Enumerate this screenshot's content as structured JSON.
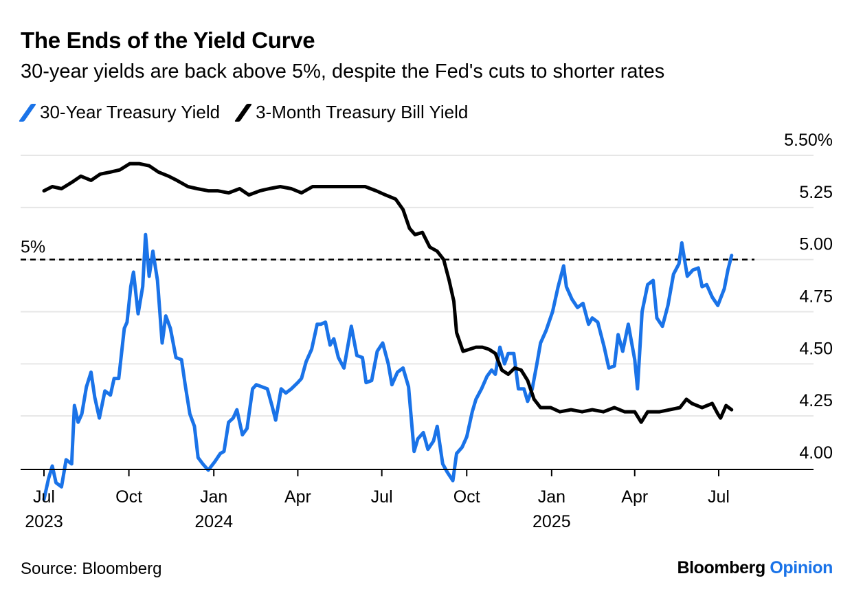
{
  "header": {
    "title": "The Ends of the Yield Curve",
    "subtitle": "30-year yields are back above 5%, despite the Fed's cuts to shorter rates"
  },
  "footer": {
    "source": "Source: Bloomberg",
    "brand_main": "Bloomberg",
    "brand_accent": "Opinion"
  },
  "colors": {
    "series_30y": "#1a73e8",
    "series_3m": "#000000",
    "grid": "#e6e6e6",
    "brand_accent": "#1a73e8"
  },
  "chart_data": {
    "type": "line",
    "title": "The Ends of the Yield Curve",
    "subtitle": "30-year yields are back above 5%, despite the Fed's cuts to shorter rates",
    "xlabel": "",
    "ylabel": "",
    "ylim": [
      3.92,
      5.55
    ],
    "y_ticks": [
      4.0,
      4.25,
      4.5,
      4.75,
      5.0,
      5.25,
      5.5
    ],
    "y_tick_labels": [
      "4.00",
      "4.25",
      "4.50",
      "4.75",
      "5.00",
      "5.25",
      "5.50%"
    ],
    "y_axis_side": "right",
    "grid": true,
    "legend": "top-left",
    "x_ticks": [
      {
        "date": "2023-07-01",
        "label": "Jul",
        "year": "2023"
      },
      {
        "date": "2023-10-01",
        "label": "Oct",
        "year": ""
      },
      {
        "date": "2024-01-01",
        "label": "Jan",
        "year": "2024"
      },
      {
        "date": "2024-04-01",
        "label": "Apr",
        "year": ""
      },
      {
        "date": "2024-07-01",
        "label": "Jul",
        "year": ""
      },
      {
        "date": "2024-10-01",
        "label": "Oct",
        "year": ""
      },
      {
        "date": "2025-01-01",
        "label": "Jan",
        "year": "2025"
      },
      {
        "date": "2025-04-01",
        "label": "Apr",
        "year": ""
      },
      {
        "date": "2025-07-01",
        "label": "Jul",
        "year": ""
      }
    ],
    "reference_line": {
      "value": 5.0,
      "label": "5%",
      "style": "dashed"
    },
    "series": [
      {
        "name": "30-Year Treasury Yield",
        "points": [
          [
            "2023-07-01",
            3.85
          ],
          [
            "2023-07-06",
            3.95
          ],
          [
            "2023-07-10",
            4.01
          ],
          [
            "2023-07-14",
            3.93
          ],
          [
            "2023-07-20",
            3.91
          ],
          [
            "2023-07-25",
            4.04
          ],
          [
            "2023-07-31",
            4.02
          ],
          [
            "2023-08-03",
            4.3
          ],
          [
            "2023-08-07",
            4.22
          ],
          [
            "2023-08-11",
            4.26
          ],
          [
            "2023-08-16",
            4.39
          ],
          [
            "2023-08-21",
            4.46
          ],
          [
            "2023-08-25",
            4.34
          ],
          [
            "2023-08-30",
            4.24
          ],
          [
            "2023-09-05",
            4.37
          ],
          [
            "2023-09-11",
            4.35
          ],
          [
            "2023-09-15",
            4.43
          ],
          [
            "2023-09-20",
            4.43
          ],
          [
            "2023-09-26",
            4.67
          ],
          [
            "2023-09-29",
            4.7
          ],
          [
            "2023-10-03",
            4.87
          ],
          [
            "2023-10-06",
            4.94
          ],
          [
            "2023-10-11",
            4.74
          ],
          [
            "2023-10-16",
            4.87
          ],
          [
            "2023-10-19",
            5.12
          ],
          [
            "2023-10-23",
            4.92
          ],
          [
            "2023-10-27",
            5.04
          ],
          [
            "2023-11-01",
            4.9
          ],
          [
            "2023-11-06",
            4.6
          ],
          [
            "2023-11-10",
            4.73
          ],
          [
            "2023-11-15",
            4.67
          ],
          [
            "2023-11-21",
            4.53
          ],
          [
            "2023-11-27",
            4.52
          ],
          [
            "2023-12-01",
            4.4
          ],
          [
            "2023-12-06",
            4.26
          ],
          [
            "2023-12-11",
            4.2
          ],
          [
            "2023-12-15",
            4.05
          ],
          [
            "2023-12-20",
            4.02
          ],
          [
            "2023-12-26",
            3.99
          ],
          [
            "2024-01-02",
            4.03
          ],
          [
            "2024-01-08",
            4.07
          ],
          [
            "2024-01-12",
            4.08
          ],
          [
            "2024-01-17",
            4.22
          ],
          [
            "2024-01-22",
            4.24
          ],
          [
            "2024-01-26",
            4.28
          ],
          [
            "2024-02-01",
            4.16
          ],
          [
            "2024-02-06",
            4.19
          ],
          [
            "2024-02-12",
            4.38
          ],
          [
            "2024-02-16",
            4.4
          ],
          [
            "2024-02-22",
            4.39
          ],
          [
            "2024-02-28",
            4.38
          ],
          [
            "2024-03-04",
            4.3
          ],
          [
            "2024-03-08",
            4.23
          ],
          [
            "2024-03-14",
            4.38
          ],
          [
            "2024-03-19",
            4.36
          ],
          [
            "2024-03-25",
            4.38
          ],
          [
            "2024-04-01",
            4.41
          ],
          [
            "2024-04-05",
            4.43
          ],
          [
            "2024-04-10",
            4.51
          ],
          [
            "2024-04-16",
            4.57
          ],
          [
            "2024-04-22",
            4.69
          ],
          [
            "2024-04-26",
            4.69
          ],
          [
            "2024-05-01",
            4.7
          ],
          [
            "2024-05-06",
            4.59
          ],
          [
            "2024-05-10",
            4.62
          ],
          [
            "2024-05-15",
            4.53
          ],
          [
            "2024-05-21",
            4.48
          ],
          [
            "2024-05-29",
            4.68
          ],
          [
            "2024-06-04",
            4.54
          ],
          [
            "2024-06-10",
            4.53
          ],
          [
            "2024-06-14",
            4.41
          ],
          [
            "2024-06-20",
            4.42
          ],
          [
            "2024-06-26",
            4.56
          ],
          [
            "2024-07-02",
            4.6
          ],
          [
            "2024-07-08",
            4.5
          ],
          [
            "2024-07-12",
            4.4
          ],
          [
            "2024-07-18",
            4.46
          ],
          [
            "2024-07-24",
            4.48
          ],
          [
            "2024-07-30",
            4.39
          ],
          [
            "2024-08-05",
            4.08
          ],
          [
            "2024-08-09",
            4.14
          ],
          [
            "2024-08-15",
            4.17
          ],
          [
            "2024-08-20",
            4.09
          ],
          [
            "2024-08-26",
            4.13
          ],
          [
            "2024-08-30",
            4.2
          ],
          [
            "2024-09-05",
            4.02
          ],
          [
            "2024-09-10",
            3.98
          ],
          [
            "2024-09-16",
            3.94
          ],
          [
            "2024-09-20",
            4.07
          ],
          [
            "2024-09-26",
            4.1
          ],
          [
            "2024-10-01",
            4.15
          ],
          [
            "2024-10-07",
            4.27
          ],
          [
            "2024-10-11",
            4.33
          ],
          [
            "2024-10-17",
            4.38
          ],
          [
            "2024-10-23",
            4.44
          ],
          [
            "2024-10-28",
            4.47
          ],
          [
            "2024-11-01",
            4.45
          ],
          [
            "2024-11-06",
            4.58
          ],
          [
            "2024-11-11",
            4.5
          ],
          [
            "2024-11-15",
            4.55
          ],
          [
            "2024-11-21",
            4.55
          ],
          [
            "2024-11-26",
            4.38
          ],
          [
            "2024-12-02",
            4.38
          ],
          [
            "2024-12-06",
            4.32
          ],
          [
            "2024-12-11",
            4.38
          ],
          [
            "2024-12-16",
            4.5
          ],
          [
            "2024-12-20",
            4.6
          ],
          [
            "2024-12-26",
            4.66
          ],
          [
            "2025-01-02",
            4.75
          ],
          [
            "2025-01-08",
            4.87
          ],
          [
            "2025-01-14",
            4.97
          ],
          [
            "2025-01-17",
            4.87
          ],
          [
            "2025-01-23",
            4.81
          ],
          [
            "2025-01-29",
            4.77
          ],
          [
            "2025-02-04",
            4.79
          ],
          [
            "2025-02-10",
            4.69
          ],
          [
            "2025-02-14",
            4.72
          ],
          [
            "2025-02-20",
            4.7
          ],
          [
            "2025-02-27",
            4.58
          ],
          [
            "2025-03-04",
            4.48
          ],
          [
            "2025-03-10",
            4.49
          ],
          [
            "2025-03-14",
            4.64
          ],
          [
            "2025-03-19",
            4.56
          ],
          [
            "2025-03-25",
            4.69
          ],
          [
            "2025-04-01",
            4.52
          ],
          [
            "2025-04-04",
            4.38
          ],
          [
            "2025-04-09",
            4.75
          ],
          [
            "2025-04-15",
            4.88
          ],
          [
            "2025-04-21",
            4.9
          ],
          [
            "2025-04-25",
            4.72
          ],
          [
            "2025-05-01",
            4.68
          ],
          [
            "2025-05-07",
            4.78
          ],
          [
            "2025-05-13",
            4.93
          ],
          [
            "2025-05-19",
            4.98
          ],
          [
            "2025-05-22",
            5.08
          ],
          [
            "2025-05-28",
            4.92
          ],
          [
            "2025-06-03",
            4.95
          ],
          [
            "2025-06-09",
            4.96
          ],
          [
            "2025-06-13",
            4.87
          ],
          [
            "2025-06-18",
            4.88
          ],
          [
            "2025-06-24",
            4.82
          ],
          [
            "2025-06-30",
            4.78
          ],
          [
            "2025-07-07",
            4.86
          ],
          [
            "2025-07-11",
            4.95
          ],
          [
            "2025-07-15",
            5.02
          ]
        ]
      },
      {
        "name": "3-Month Treasury Bill Yield",
        "points": [
          [
            "2023-07-01",
            5.33
          ],
          [
            "2023-07-10",
            5.35
          ],
          [
            "2023-07-20",
            5.34
          ],
          [
            "2023-07-31",
            5.37
          ],
          [
            "2023-08-10",
            5.4
          ],
          [
            "2023-08-21",
            5.38
          ],
          [
            "2023-08-31",
            5.41
          ],
          [
            "2023-09-11",
            5.42
          ],
          [
            "2023-09-21",
            5.43
          ],
          [
            "2023-10-02",
            5.46
          ],
          [
            "2023-10-12",
            5.46
          ],
          [
            "2023-10-23",
            5.45
          ],
          [
            "2023-11-02",
            5.42
          ],
          [
            "2023-11-13",
            5.4
          ],
          [
            "2023-11-22",
            5.38
          ],
          [
            "2023-12-04",
            5.35
          ],
          [
            "2023-12-14",
            5.34
          ],
          [
            "2023-12-26",
            5.33
          ],
          [
            "2024-01-05",
            5.33
          ],
          [
            "2024-01-17",
            5.32
          ],
          [
            "2024-01-29",
            5.34
          ],
          [
            "2024-02-08",
            5.31
          ],
          [
            "2024-02-20",
            5.33
          ],
          [
            "2024-03-01",
            5.34
          ],
          [
            "2024-03-13",
            5.35
          ],
          [
            "2024-03-25",
            5.34
          ],
          [
            "2024-04-05",
            5.32
          ],
          [
            "2024-04-17",
            5.35
          ],
          [
            "2024-04-29",
            5.35
          ],
          [
            "2024-05-09",
            5.35
          ],
          [
            "2024-05-21",
            5.35
          ],
          [
            "2024-06-03",
            5.35
          ],
          [
            "2024-06-13",
            5.35
          ],
          [
            "2024-06-25",
            5.33
          ],
          [
            "2024-07-05",
            5.31
          ],
          [
            "2024-07-16",
            5.29
          ],
          [
            "2024-07-24",
            5.24
          ],
          [
            "2024-07-31",
            5.15
          ],
          [
            "2024-08-06",
            5.12
          ],
          [
            "2024-08-14",
            5.13
          ],
          [
            "2024-08-22",
            5.06
          ],
          [
            "2024-08-30",
            5.04
          ],
          [
            "2024-09-06",
            5.0
          ],
          [
            "2024-09-12",
            4.9
          ],
          [
            "2024-09-17",
            4.8
          ],
          [
            "2024-09-20",
            4.65
          ],
          [
            "2024-09-27",
            4.56
          ],
          [
            "2024-10-04",
            4.57
          ],
          [
            "2024-10-11",
            4.58
          ],
          [
            "2024-10-18",
            4.58
          ],
          [
            "2024-10-25",
            4.57
          ],
          [
            "2024-11-01",
            4.55
          ],
          [
            "2024-11-08",
            4.47
          ],
          [
            "2024-11-15",
            4.45
          ],
          [
            "2024-11-22",
            4.48
          ],
          [
            "2024-11-29",
            4.47
          ],
          [
            "2024-12-06",
            4.42
          ],
          [
            "2024-12-13",
            4.33
          ],
          [
            "2024-12-20",
            4.29
          ],
          [
            "2024-12-31",
            4.29
          ],
          [
            "2025-01-10",
            4.27
          ],
          [
            "2025-01-22",
            4.28
          ],
          [
            "2025-02-03",
            4.27
          ],
          [
            "2025-02-14",
            4.28
          ],
          [
            "2025-02-26",
            4.27
          ],
          [
            "2025-03-10",
            4.29
          ],
          [
            "2025-03-21",
            4.27
          ],
          [
            "2025-04-01",
            4.27
          ],
          [
            "2025-04-08",
            4.22
          ],
          [
            "2025-04-15",
            4.27
          ],
          [
            "2025-04-28",
            4.27
          ],
          [
            "2025-05-09",
            4.28
          ],
          [
            "2025-05-20",
            4.29
          ],
          [
            "2025-05-27",
            4.33
          ],
          [
            "2025-06-02",
            4.31
          ],
          [
            "2025-06-13",
            4.29
          ],
          [
            "2025-06-24",
            4.31
          ],
          [
            "2025-06-30",
            4.26
          ],
          [
            "2025-07-03",
            4.24
          ],
          [
            "2025-07-09",
            4.3
          ],
          [
            "2025-07-15",
            4.28
          ]
        ]
      }
    ]
  }
}
